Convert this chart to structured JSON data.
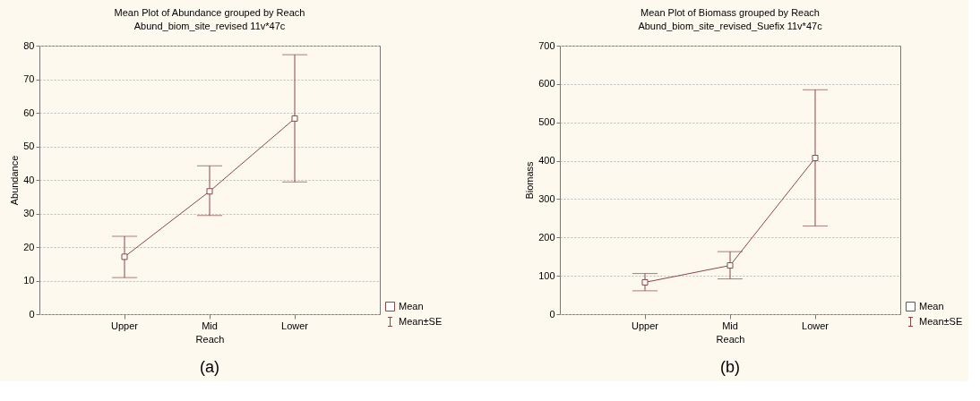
{
  "chart_data": [
    {
      "type": "line",
      "title": "Mean Plot of Abundance grouped by  Reach",
      "subtitle": "Abund_biom_site_revised 11v*47c",
      "xlabel": "Reach",
      "ylabel": "Abundance",
      "categories": [
        "Upper",
        "Mid",
        "Lower"
      ],
      "series": [
        {
          "name": "Mean",
          "color": "#8c4646",
          "values": [
            17.1,
            36.6,
            58.3
          ],
          "errors": [
            [
              10.9,
              23.2
            ],
            [
              29.4,
              44.2
            ],
            [
              39.4,
              77.3
            ]
          ]
        }
      ],
      "ylim": [
        0,
        80
      ],
      "yticks": [
        0,
        10,
        20,
        30,
        40,
        50,
        60,
        70,
        80
      ],
      "grid": "y",
      "legend": "bottom right",
      "marker": "square",
      "line_style": "solid",
      "annotations": [
        "Mean±SE",
        "(a)"
      ]
    },
    {
      "type": "line",
      "title": "Mean Plot of Biomass grouped by  Reach",
      "subtitle": "Abund_biom_site_revised_Suefix 11v*47c",
      "xlabel": "Reach",
      "ylabel": "Biomass",
      "categories": [
        "Upper",
        "Mid",
        "Lower"
      ],
      "series": [
        {
          "name": "Mean",
          "color": "#8c4646",
          "values": [
            83,
            127,
            407
          ],
          "errors": [
            [
              61,
              106
            ],
            [
              92,
              163
            ],
            [
              230,
              585
            ]
          ]
        }
      ],
      "ylim": [
        0,
        700
      ],
      "yticks": [
        0,
        100,
        200,
        300,
        400,
        500,
        600,
        700
      ],
      "grid": "y",
      "legend": "bottom right",
      "marker": "square",
      "line_style": "solid",
      "annotations": [
        "Mean±SE",
        "(b)"
      ]
    }
  ]
}
